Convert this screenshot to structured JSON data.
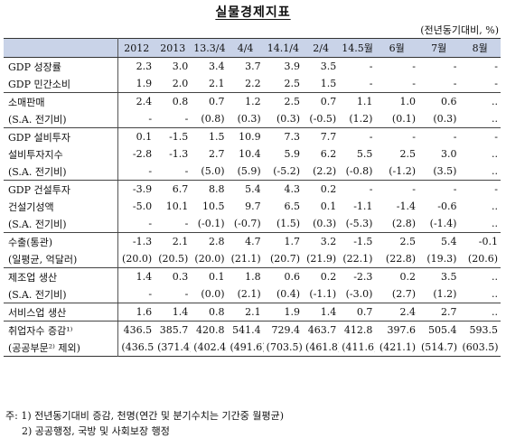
{
  "title": "실물경제지표",
  "unit": "(전년동기대비, %)",
  "columns": [
    "2012",
    "2013",
    "13.3/4",
    "4/4",
    "14.1/4",
    "2/4",
    "14.5월",
    "6월",
    "7월",
    "8월"
  ],
  "rows": [
    {
      "label": "GDP 성장률",
      "values": [
        "2.3",
        "3.0",
        "3.4",
        "3.7",
        "3.9",
        "3.5",
        "-",
        "-",
        "-",
        "-"
      ]
    },
    {
      "label": "GDP 민간소비",
      "values": [
        "1.9",
        "2.0",
        "2.1",
        "2.2",
        "2.5",
        "1.5",
        "-",
        "-",
        "-",
        "-"
      ]
    },
    {
      "label": "소매판매",
      "values": [
        "2.4",
        "0.8",
        "0.7",
        "1.2",
        "2.5",
        "0.7",
        "1.1",
        "1.0",
        "0.6",
        ".."
      ]
    },
    {
      "label": "(S.A. 전기비)",
      "values": [
        "-",
        "-",
        "(0.8)",
        "(0.3)",
        "(0.3)",
        "(-0.5)",
        "(1.2)",
        "(0.1)",
        "(0.3)",
        ".."
      ]
    },
    {
      "label": "GDP 설비투자",
      "values": [
        "0.1",
        "-1.5",
        "1.5",
        "10.9",
        "7.3",
        "7.7",
        "-",
        "-",
        "-",
        "-"
      ]
    },
    {
      "label": "설비투자지수",
      "values": [
        "-2.8",
        "-1.3",
        "2.7",
        "10.4",
        "5.9",
        "6.2",
        "5.5",
        "2.5",
        "3.0",
        ".."
      ]
    },
    {
      "label": "(S.A. 전기비)",
      "values": [
        "-",
        "-",
        "(5.0)",
        "(5.9)",
        "(-5.2)",
        "(2.2)",
        "(-0.8)",
        "(-1.2)",
        "(3.5)",
        ".."
      ]
    },
    {
      "label": "GDP 건설투자",
      "values": [
        "-3.9",
        "6.7",
        "8.8",
        "5.4",
        "4.3",
        "0.2",
        "-",
        "-",
        "-",
        "-"
      ]
    },
    {
      "label": "건설기성액",
      "values": [
        "-5.0",
        "10.1",
        "10.5",
        "9.7",
        "6.5",
        "0.1",
        "-1.1",
        "-1.4",
        "-0.6",
        ".."
      ]
    },
    {
      "label": "(S.A. 전기비)",
      "values": [
        "-",
        "-",
        "(-0.1)",
        "(-0.7)",
        "(1.5)",
        "(0.3)",
        "(-5.3)",
        "(2.8)",
        "(-1.4)",
        ".."
      ]
    },
    {
      "label": "수출(통관)",
      "values": [
        "-1.3",
        "2.1",
        "2.8",
        "4.7",
        "1.7",
        "3.2",
        "-1.5",
        "2.5",
        "5.4",
        "-0.1"
      ]
    },
    {
      "label": "(일평균, 억달러)",
      "values": [
        "(20.0)",
        "(20.5)",
        "(20.0)",
        "(21.1)",
        "(20.7)",
        "(21.9)",
        "(22.1)",
        "(22.8)",
        "(19.3)",
        "(20.6)"
      ]
    },
    {
      "label": "제조업 생산",
      "values": [
        "1.4",
        "0.3",
        "0.1",
        "1.8",
        "0.6",
        "0.2",
        "-2.3",
        "0.2",
        "3.5",
        ".."
      ]
    },
    {
      "label": "(S.A. 전기비)",
      "values": [
        "-",
        "-",
        "(0.0)",
        "(2.1)",
        "(0.4)",
        "(-1.1)",
        "(-3.0)",
        "(2.7)",
        "(1.2)",
        ".."
      ]
    },
    {
      "label": "서비스업 생산",
      "values": [
        "1.6",
        "1.4",
        "0.8",
        "2.1",
        "1.9",
        "1.4",
        "0.7",
        "2.4",
        "2.7",
        ".."
      ]
    },
    {
      "label": "취업자수 증감¹⁾",
      "values": [
        "436.5",
        "385.7",
        "420.8",
        "541.4",
        "729.4",
        "463.7",
        "412.8",
        "397.6",
        "505.4",
        "593.5"
      ]
    },
    {
      "label": "(공공부문²⁾ 제외)",
      "values": [
        "(436.5)",
        "(371.4)",
        "(402.4)",
        "(491.6)",
        "(703.5)",
        "(461.8)",
        "(411.6)",
        "(421.1)",
        "(514.7)",
        "(603.5)"
      ]
    }
  ],
  "group_ends": [
    1,
    3,
    6,
    9,
    11,
    13,
    14
  ],
  "footnotes": [
    "주: 1) 전년동기대비 증감, 천명(연간 및 분기수치는 기간중 월평균)",
    "2) 공공행정, 국방 및 사회보장 행정"
  ]
}
